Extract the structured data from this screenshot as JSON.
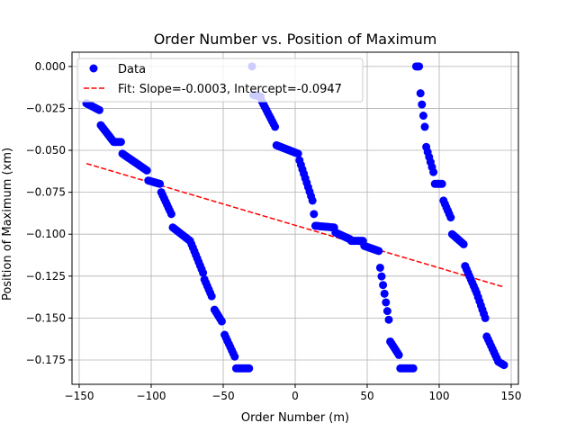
{
  "chart_data": {
    "type": "scatter",
    "title": "Order Number vs. Position of Maximum",
    "xlabel": "Order Number (m)",
    "ylabel": "Position of Maximum (xm)",
    "xlim": [
      -155,
      155
    ],
    "ylim": [
      -0.1895,
      0.0085
    ],
    "xticks": [
      -150,
      -100,
      -50,
      0,
      50,
      100,
      150
    ],
    "xtick_labels": [
      "−150",
      "−100",
      "−50",
      "0",
      "50",
      "100",
      "150"
    ],
    "yticks": [
      0.0,
      -0.025,
      -0.05,
      -0.075,
      -0.1,
      -0.125,
      -0.15,
      -0.175
    ],
    "ytick_labels": [
      "0.000",
      "−0.025",
      "−0.050",
      "−0.075",
      "−0.100",
      "−0.125",
      "−0.150",
      "−0.175"
    ],
    "grid": true,
    "legend_position": "upper-left",
    "series": [
      {
        "name": "Data",
        "color": "#0000ff",
        "segments": [
          {
            "x_start": -145,
            "x_end": -136,
            "y_start": -0.022,
            "y_end": -0.026
          },
          {
            "x_start": -135,
            "x_end": -126,
            "y_start": -0.035,
            "y_end": -0.045
          },
          {
            "x_start": -125,
            "x_end": -121,
            "y_start": -0.045,
            "y_end": -0.045
          },
          {
            "x_start": -120,
            "x_end": -103,
            "y_start": -0.052,
            "y_end": -0.062
          },
          {
            "x_start": -102,
            "x_end": -94,
            "y_start": -0.068,
            "y_end": -0.07
          },
          {
            "x_start": -93,
            "x_end": -86,
            "y_start": -0.075,
            "y_end": -0.088
          },
          {
            "x_start": -85,
            "x_end": -73,
            "y_start": -0.096,
            "y_end": -0.104
          },
          {
            "x_start": -72,
            "x_end": -64,
            "y_start": -0.106,
            "y_end": -0.123
          },
          {
            "x_start": -63,
            "x_end": -58,
            "y_start": -0.127,
            "y_end": -0.137
          },
          {
            "x_start": -56,
            "x_end": -51,
            "y_start": -0.145,
            "y_end": -0.152
          },
          {
            "x_start": -49,
            "x_end": -42,
            "y_start": -0.16,
            "y_end": -0.173
          },
          {
            "x_start": -41,
            "x_end": -32,
            "y_start": -0.18,
            "y_end": -0.18
          },
          {
            "x_start": -30,
            "x_end": -30,
            "y_start": 0.0,
            "y_end": 0.0
          },
          {
            "x_start": -29,
            "x_end": -24,
            "y_start": -0.017,
            "y_end": -0.018
          },
          {
            "x_start": -23,
            "x_end": -14,
            "y_start": -0.021,
            "y_end": -0.036
          },
          {
            "x_start": -13,
            "x_end": 2,
            "y_start": -0.047,
            "y_end": -0.052
          },
          {
            "x_start": 3,
            "x_end": 12,
            "y_start": -0.056,
            "y_end": -0.08
          },
          {
            "x_start": 13,
            "x_end": 13,
            "y_start": -0.088,
            "y_end": -0.088
          },
          {
            "x_start": 14,
            "x_end": 27,
            "y_start": -0.095,
            "y_end": -0.096
          },
          {
            "x_start": 28,
            "x_end": 38,
            "y_start": -0.099,
            "y_end": -0.103
          },
          {
            "x_start": 39,
            "x_end": 47,
            "y_start": -0.104,
            "y_end": -0.104
          },
          {
            "x_start": 48,
            "x_end": 58,
            "y_start": -0.107,
            "y_end": -0.11
          },
          {
            "x_start": 59,
            "x_end": 65,
            "y_start": -0.12,
            "y_end": -0.151
          },
          {
            "x_start": 66,
            "x_end": 72,
            "y_start": -0.164,
            "y_end": -0.172
          },
          {
            "x_start": 73,
            "x_end": 82,
            "y_start": -0.18,
            "y_end": -0.18
          },
          {
            "x_start": 84,
            "x_end": 86,
            "y_start": 0.0,
            "y_end": 0.0
          },
          {
            "x_start": 87,
            "x_end": 90,
            "y_start": -0.016,
            "y_end": -0.036
          },
          {
            "x_start": 91,
            "x_end": 96,
            "y_start": -0.048,
            "y_end": -0.063
          },
          {
            "x_start": 97,
            "x_end": 102,
            "y_start": -0.07,
            "y_end": -0.07
          },
          {
            "x_start": 103,
            "x_end": 108,
            "y_start": -0.08,
            "y_end": -0.09
          },
          {
            "x_start": 109,
            "x_end": 117,
            "y_start": -0.1,
            "y_end": -0.106
          },
          {
            "x_start": 118,
            "x_end": 125,
            "y_start": -0.119,
            "y_end": -0.133
          },
          {
            "x_start": 126,
            "x_end": 132,
            "y_start": -0.135,
            "y_end": -0.15
          },
          {
            "x_start": 133,
            "x_end": 140,
            "y_start": -0.161,
            "y_end": -0.174
          },
          {
            "x_start": 141,
            "x_end": 145,
            "y_start": -0.176,
            "y_end": -0.178
          }
        ]
      },
      {
        "name": "Fit: Slope=-0.0003, Intercept=-0.0947",
        "type": "line",
        "style": "dashed",
        "color": "#ff0000",
        "slope": -0.000254,
        "intercept": -0.0947,
        "x_range": [
          -145,
          145
        ]
      }
    ]
  }
}
